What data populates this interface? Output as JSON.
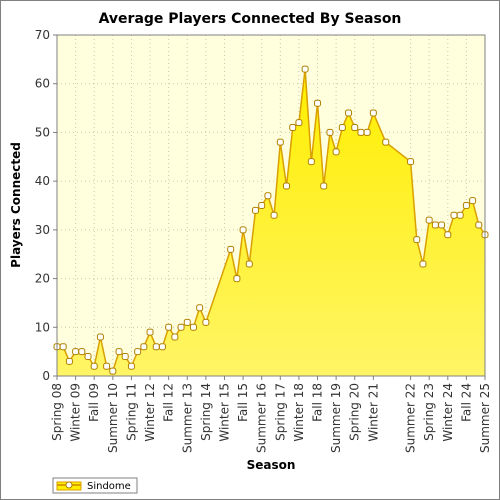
{
  "colors": {
    "plot_background": "#ffffdd",
    "area_fill": "#ffee00",
    "area_fill_light": "#fff566",
    "line": "#d9a000",
    "marker_fill": "#ffffff",
    "marker_stroke": "#b08000",
    "grid": "#c8c8b4"
  },
  "chart_data": {
    "type": "area",
    "title": "Average Players Connected By Season",
    "xlabel": "Season",
    "ylabel": "Players Connected",
    "ylim": [
      0,
      70
    ],
    "yticks": [
      0,
      10,
      20,
      30,
      40,
      50,
      60,
      70
    ],
    "grid": true,
    "legend_position": "bottom-left",
    "categories": [
      "Spring 08",
      "Summer 08",
      "Fall 08",
      "Winter 09",
      "Spring 09",
      "Summer 09",
      "Fall 09",
      "Winter 10",
      "Spring 10",
      "Summer 10",
      "Fall 10",
      "Winter 11",
      "Spring 11",
      "Summer 11",
      "Fall 11",
      "Winter 12",
      "Spring 12",
      "Summer 12",
      "Fall 12",
      "Winter 13",
      "Spring 13",
      "Summer 13",
      "Fall 13",
      "Winter 14",
      "Spring 14",
      "Summer 14",
      "Fall 14",
      "Winter 15",
      "Spring 15",
      "Summer 15",
      "Fall 15",
      "Winter 16",
      "Spring 16",
      "Summer 16",
      "Fall 16",
      "Winter 17",
      "Spring 17",
      "Summer 17",
      "Fall 17",
      "Winter 18",
      "Spring 18",
      "Summer 18",
      "Fall 18",
      "Winter 19",
      "Spring 19",
      "Summer 19",
      "Fall 19",
      "Winter 20",
      "Spring 20",
      "Summer 20",
      "Fall 20",
      "Winter 21",
      "Spring 21",
      "Summer 21",
      "Fall 21",
      "Winter 22",
      "Spring 22",
      "Summer 22",
      "Fall 22",
      "Winter 23",
      "Spring 23",
      "Summer 23",
      "Fall 23",
      "Winter 24",
      "Spring 24",
      "Summer 24",
      "Fall 24",
      "Winter 25",
      "Spring 25",
      "Summer 25"
    ],
    "tick_labels": [
      "Spring 08",
      "Winter 09",
      "Fall 09",
      "Summer 10",
      "Spring 11",
      "Winter 12",
      "Fall 12",
      "Summer 13",
      "Spring 14",
      "Winter 15",
      "Fall 15",
      "Summer 16",
      "Spring 17",
      "Winter 18",
      "Fall 18",
      "Summer 19",
      "Spring 20",
      "Winter 21",
      "Summer 22",
      "Spring 23",
      "Winter 24",
      "Fall 24",
      "Summer 25"
    ],
    "series": [
      {
        "name": "Sindome",
        "values": [
          6,
          6,
          3,
          5,
          5,
          4,
          2,
          8,
          2,
          1,
          5,
          4,
          2,
          5,
          6,
          9,
          6,
          6,
          10,
          8,
          10,
          11,
          10,
          14,
          11,
          null,
          null,
          null,
          26,
          20,
          30,
          23,
          34,
          35,
          37,
          33,
          48,
          39,
          51,
          52,
          63,
          44,
          56,
          39,
          50,
          46,
          51,
          54,
          51,
          50,
          50,
          54,
          null,
          48,
          null,
          null,
          null,
          44,
          28,
          23,
          32,
          31,
          31,
          29,
          33,
          33,
          35,
          36,
          31,
          29
        ]
      }
    ]
  }
}
